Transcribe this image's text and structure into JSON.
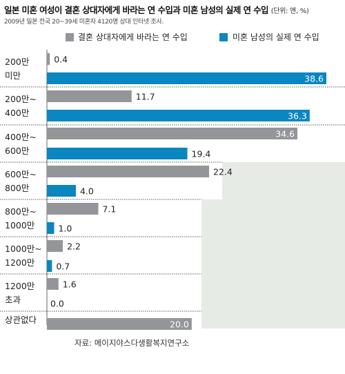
{
  "title": "일본 미혼 여성이 결혼 상대자에게 바라는 연 수입과 미혼 남성의 실제 연 수입",
  "unit": "(단위: 엔, %)",
  "subtitle": "2009년 일본 전국 20~39세 미혼자 4120명 상대 인터넷 조사.",
  "source": "자료: 메이지야스다생활복지연구소",
  "colors": {
    "background": "#e6ebe5",
    "panel": "#ffffff",
    "desired": "#939598",
    "actual": "#0a86c0",
    "desired_label_text": "#ffffff"
  },
  "chart_data": {
    "type": "bar",
    "orientation": "horizontal",
    "categories": [
      [
        "200만",
        "미만"
      ],
      [
        "200만~",
        "400만"
      ],
      [
        "400만~",
        "600만"
      ],
      [
        "600만~",
        "800만"
      ],
      [
        "800만~",
        "1000만"
      ],
      [
        "1000만~",
        "1200만"
      ],
      [
        "1200만",
        "초과"
      ],
      [
        "상관없다"
      ]
    ],
    "series": [
      {
        "name": "결혼 상대자에게 바라는 연 수입",
        "color": "#939598",
        "values": [
          0.4,
          11.7,
          34.6,
          22.4,
          7.1,
          2.2,
          1.6,
          20.0
        ]
      },
      {
        "name": "미혼 남성의 실제 연 수입",
        "color": "#0a86c0",
        "values": [
          38.6,
          36.3,
          19.4,
          4.0,
          1.0,
          0.7,
          0.0,
          null
        ]
      }
    ],
    "value_labels": [
      [
        "0.4",
        "11.7",
        "34.6",
        "22.4",
        "7.1",
        "2.2",
        "1.6",
        "20.0"
      ],
      [
        "38.6",
        "36.3",
        "19.4",
        "4.0",
        "1.0",
        "0.7",
        "0.0",
        ""
      ]
    ],
    "xlim": [
      0,
      38.6
    ],
    "legend": "top",
    "grid": false
  }
}
